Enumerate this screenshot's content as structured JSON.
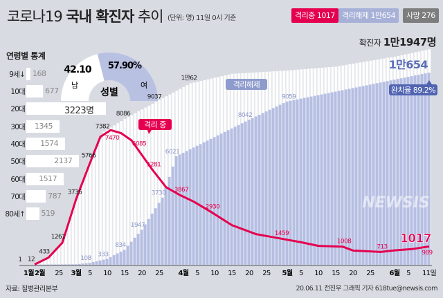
{
  "header": {
    "title_light": "코로나19",
    "title_bold": "국내 확진자",
    "title_end": "추이",
    "unit_note": "(단위: 명) 11일 0시 기준"
  },
  "badges": [
    {
      "label": "격리중 1017",
      "color": "#e5004f"
    },
    {
      "label": "격리해제 1만654",
      "color": "#a7b1d8"
    },
    {
      "label": "사망 276",
      "color": "#7d7d7d"
    }
  ],
  "total": {
    "label": "확진자",
    "value": "1만1947명"
  },
  "gender": {
    "title": "성별",
    "male_label": "남",
    "male_pct": "42.10",
    "female_label": "여",
    "female_pct": "57.90%",
    "female_share": 57.9,
    "colors": {
      "male": "#ffffff",
      "female": "#b9c1e2"
    }
  },
  "age": {
    "title": "연령별 통계",
    "items": [
      {
        "label": "9세↓",
        "value": 168,
        "text": "168"
      },
      {
        "label": "10대",
        "value": 677,
        "text": "677"
      },
      {
        "label": "20대",
        "value": 3223,
        "text": "3223명"
      },
      {
        "label": "30대",
        "value": 1345,
        "text": "1345"
      },
      {
        "label": "40대",
        "value": 1574,
        "text": "1574"
      },
      {
        "label": "50대",
        "value": 2137,
        "text": "2137"
      },
      {
        "label": "60대",
        "value": 1517,
        "text": "1517"
      },
      {
        "label": "70대",
        "value": 787,
        "text": "787"
      },
      {
        "label": "80세↑",
        "value": 519,
        "text": "519"
      }
    ]
  },
  "chart_data": {
    "type": "bar+line",
    "x_ticks": [
      {
        "date": "01-20",
        "label": "1월",
        "bold": true
      },
      {
        "date": "02-01",
        "label": "2월",
        "bold": true
      },
      {
        "date": "02-25",
        "label": "25"
      },
      {
        "date": "03-01",
        "label": "3월",
        "bold": true
      },
      {
        "date": "03-05",
        "label": "5"
      },
      {
        "date": "03-10",
        "label": "10"
      },
      {
        "date": "03-15",
        "label": "15"
      },
      {
        "date": "03-20",
        "label": "20"
      },
      {
        "date": "03-25",
        "label": "25"
      },
      {
        "date": "04-01",
        "label": "4월",
        "bold": true
      },
      {
        "date": "04-05",
        "label": "5"
      },
      {
        "date": "04-10",
        "label": "10"
      },
      {
        "date": "04-15",
        "label": "15"
      },
      {
        "date": "04-20",
        "label": "20"
      },
      {
        "date": "04-25",
        "label": "25"
      },
      {
        "date": "05-01",
        "label": "5월",
        "bold": true
      },
      {
        "date": "05-05",
        "label": "5"
      },
      {
        "date": "05-10",
        "label": "10"
      },
      {
        "date": "05-15",
        "label": "15"
      },
      {
        "date": "05-20",
        "label": "20"
      },
      {
        "date": "05-25",
        "label": "25"
      },
      {
        "date": "06-01",
        "label": "6월",
        "bold": true
      },
      {
        "date": "06-05",
        "label": "5"
      },
      {
        "date": "06-11",
        "label": "11일"
      }
    ],
    "series": [
      {
        "name": "확진자",
        "kind": "bar",
        "color": "#ffffff",
        "points": [
          [
            "01-20",
            1,
            "1"
          ],
          [
            "02-01",
            12,
            "12"
          ],
          [
            "02-18",
            31,
            null
          ],
          [
            "02-22",
            433,
            "433"
          ],
          [
            "02-26",
            1261,
            "1261"
          ],
          [
            "03-01",
            3736,
            "3736"
          ],
          [
            "03-05",
            5766,
            "5766"
          ],
          [
            "03-09",
            7382,
            "7382"
          ],
          [
            "03-15",
            8086,
            "8086"
          ],
          [
            "03-24",
            9037,
            "9037"
          ],
          [
            "04-03",
            10062,
            "1만62"
          ],
          [
            "04-15",
            10591,
            null
          ],
          [
            "05-01",
            10774,
            null
          ],
          [
            "05-15",
            10991,
            null
          ],
          [
            "06-01",
            11541,
            null
          ],
          [
            "06-11",
            11947,
            null
          ]
        ]
      },
      {
        "name": "격리해제",
        "kind": "bar",
        "color": "#b6bfe2",
        "points": [
          [
            "02-18",
            12,
            null
          ],
          [
            "03-01",
            30,
            null
          ],
          [
            "03-05",
            108,
            "108"
          ],
          [
            "03-10",
            333,
            "333"
          ],
          [
            "03-15",
            834,
            "834"
          ],
          [
            "03-20",
            1947,
            "1947"
          ],
          [
            "03-26",
            3730,
            "3730"
          ],
          [
            "03-30",
            6021,
            "6021"
          ],
          [
            "04-20",
            8042,
            "8042"
          ],
          [
            "05-01",
            9059,
            "9059"
          ],
          [
            "06-11",
            10654,
            "1만654"
          ]
        ]
      },
      {
        "name": "격리 중",
        "kind": "line",
        "color": "#e5004f",
        "points": [
          [
            "02-18",
            19,
            null
          ],
          [
            "02-22",
            400,
            null
          ],
          [
            "02-26",
            1220,
            null
          ],
          [
            "03-01",
            3650,
            null
          ],
          [
            "03-05",
            5650,
            null
          ],
          [
            "03-08",
            7100,
            null
          ],
          [
            "03-11",
            7470,
            "7470"
          ],
          [
            "03-14",
            7300,
            null
          ],
          [
            "03-17",
            6900,
            null
          ],
          [
            "03-20",
            6085,
            "6085"
          ],
          [
            "03-23",
            5281,
            "5281"
          ],
          [
            "03-27",
            4300,
            null
          ],
          [
            "03-31",
            3867,
            "3867"
          ],
          [
            "04-04",
            3500,
            null
          ],
          [
            "04-09",
            2930,
            "2930"
          ],
          [
            "04-15",
            2200,
            null
          ],
          [
            "04-22",
            1700,
            null
          ],
          [
            "04-29",
            1459,
            "1459"
          ],
          [
            "05-05",
            1250,
            null
          ],
          [
            "05-10",
            1050,
            null
          ],
          [
            "05-17",
            1008,
            "1008"
          ],
          [
            "05-20",
            790,
            null
          ],
          [
            "05-28",
            713,
            "713"
          ],
          [
            "06-01",
            800,
            null
          ],
          [
            "06-06",
            870,
            null
          ],
          [
            "06-10",
            989,
            "989"
          ],
          [
            "06-11",
            1017,
            "1017"
          ]
        ]
      }
    ],
    "annotations": {
      "isolating": "격리 중",
      "released": "격리해제",
      "recovery": "완치율 89.2%"
    },
    "ylim": [
      0,
      12000
    ]
  },
  "footer": {
    "source": "자료: 질병관리본부",
    "credit": "20.06.11 전진우 그래픽 기자 618tue@newsis.com",
    "watermark": "NEWSIS"
  }
}
